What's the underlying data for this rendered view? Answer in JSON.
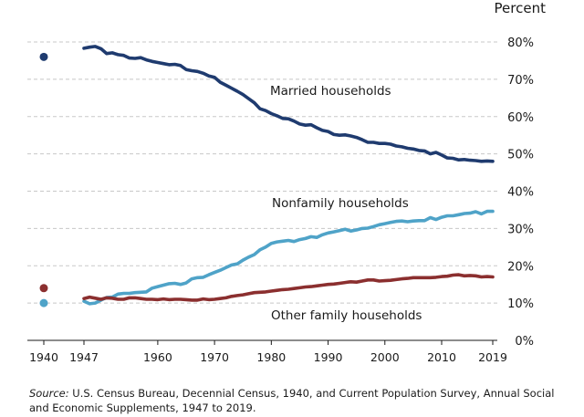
{
  "chart_data": {
    "type": "line",
    "y_unit_label": "Percent",
    "ylim": [
      0,
      80
    ],
    "y_ticks": [
      0,
      10,
      20,
      30,
      40,
      50,
      60,
      70,
      80
    ],
    "y_tick_labels": [
      "0%",
      "10%",
      "20%",
      "30%",
      "40%",
      "50%",
      "60%",
      "70%",
      "80%"
    ],
    "x_ticks": [
      1940,
      1947,
      1960,
      1970,
      1980,
      1990,
      2000,
      2010,
      2019
    ],
    "x_tick_labels": [
      "1940",
      "1947",
      "1960",
      "1970",
      "1980",
      "1990",
      "2000",
      "2010",
      "2019"
    ],
    "gridlines": true,
    "points_1940": [
      {
        "series": "Married households",
        "value": 76
      },
      {
        "series": "Other family households",
        "value": 14
      },
      {
        "series": "Nonfamily households",
        "value": 10
      }
    ],
    "series": [
      {
        "name": "Married households",
        "color": "#1f3b6f",
        "x": [
          1947,
          1948,
          1949,
          1950,
          1951,
          1952,
          1953,
          1954,
          1955,
          1956,
          1957,
          1958,
          1959,
          1960,
          1961,
          1962,
          1963,
          1964,
          1965,
          1966,
          1967,
          1968,
          1969,
          1970,
          1971,
          1972,
          1973,
          1974,
          1975,
          1976,
          1977,
          1978,
          1979,
          1980,
          1981,
          1982,
          1983,
          1984,
          1985,
          1986,
          1987,
          1988,
          1989,
          1990,
          1991,
          1992,
          1993,
          1994,
          1995,
          1996,
          1997,
          1998,
          1999,
          2000,
          2001,
          2002,
          2003,
          2004,
          2005,
          2006,
          2007,
          2008,
          2009,
          2010,
          2011,
          2012,
          2013,
          2014,
          2015,
          2016,
          2017,
          2018,
          2019
        ],
        "values": [
          78.3,
          78.6,
          78.8,
          78.2,
          76.9,
          77.1,
          76.6,
          76.4,
          75.7,
          75.6,
          75.8,
          75.2,
          74.8,
          74.5,
          74.2,
          73.9,
          74.0,
          73.7,
          72.6,
          72.3,
          72.1,
          71.6,
          70.9,
          70.5,
          69.2,
          68.4,
          67.6,
          66.8,
          65.9,
          64.8,
          63.7,
          62.1,
          61.6,
          60.8,
          60.2,
          59.5,
          59.4,
          58.8,
          58.0,
          57.7,
          57.8,
          57.0,
          56.3,
          56.0,
          55.2,
          55.0,
          55.1,
          54.8,
          54.4,
          53.8,
          53.1,
          53.1,
          52.8,
          52.8,
          52.6,
          52.1,
          51.9,
          51.5,
          51.3,
          50.9,
          50.8,
          50.0,
          50.4,
          49.7,
          48.9,
          48.8,
          48.4,
          48.5,
          48.3,
          48.2,
          48.0,
          48.1,
          48.0
        ]
      },
      {
        "name": "Nonfamily households",
        "color": "#4fa3c8",
        "x": [
          1947,
          1948,
          1949,
          1950,
          1951,
          1952,
          1953,
          1954,
          1955,
          1956,
          1957,
          1958,
          1959,
          1960,
          1961,
          1962,
          1963,
          1964,
          1965,
          1966,
          1967,
          1968,
          1969,
          1970,
          1971,
          1972,
          1973,
          1974,
          1975,
          1976,
          1977,
          1978,
          1979,
          1980,
          1981,
          1982,
          1983,
          1984,
          1985,
          1986,
          1987,
          1988,
          1989,
          1990,
          1991,
          1992,
          1993,
          1994,
          1995,
          1996,
          1997,
          1998,
          1999,
          2000,
          2001,
          2002,
          2003,
          2004,
          2005,
          2006,
          2007,
          2008,
          2009,
          2010,
          2011,
          2012,
          2013,
          2014,
          2015,
          2016,
          2017,
          2018,
          2019
        ],
        "values": [
          10.5,
          9.8,
          10.0,
          10.8,
          11.5,
          11.6,
          12.4,
          12.6,
          12.6,
          12.8,
          12.9,
          13.0,
          14.0,
          14.4,
          14.8,
          15.2,
          15.3,
          15.0,
          15.4,
          16.5,
          16.8,
          16.9,
          17.6,
          18.2,
          18.8,
          19.5,
          20.2,
          20.5,
          21.5,
          22.3,
          23.0,
          24.3,
          25.0,
          26.0,
          26.4,
          26.6,
          26.8,
          26.5,
          27.0,
          27.3,
          27.8,
          27.6,
          28.3,
          28.8,
          29.1,
          29.4,
          29.8,
          29.3,
          29.6,
          30.0,
          30.1,
          30.5,
          31.0,
          31.3,
          31.6,
          31.9,
          32.0,
          31.8,
          32.0,
          32.1,
          32.1,
          32.9,
          32.4,
          33.0,
          33.4,
          33.4,
          33.7,
          34.0,
          34.1,
          34.5,
          33.9,
          34.6,
          34.6
        ]
      },
      {
        "name": "Other family households",
        "color": "#8b2f2f",
        "x": [
          1947,
          1948,
          1949,
          1950,
          1951,
          1952,
          1953,
          1954,
          1955,
          1956,
          1957,
          1958,
          1959,
          1960,
          1961,
          1962,
          1963,
          1964,
          1965,
          1966,
          1967,
          1968,
          1969,
          1970,
          1971,
          1972,
          1973,
          1974,
          1975,
          1976,
          1977,
          1978,
          1979,
          1980,
          1981,
          1982,
          1983,
          1984,
          1985,
          1986,
          1987,
          1988,
          1989,
          1990,
          1991,
          1992,
          1993,
          1994,
          1995,
          1996,
          1997,
          1998,
          1999,
          2000,
          2001,
          2002,
          2003,
          2004,
          2005,
          2006,
          2007,
          2008,
          2009,
          2010,
          2011,
          2012,
          2013,
          2014,
          2015,
          2016,
          2017,
          2018,
          2019
        ],
        "values": [
          11.2,
          11.6,
          11.3,
          11.0,
          11.4,
          11.3,
          11.0,
          11.0,
          11.4,
          11.4,
          11.2,
          11.0,
          11.0,
          10.9,
          11.1,
          10.9,
          11.0,
          11.0,
          10.9,
          10.8,
          10.8,
          11.1,
          10.9,
          11.0,
          11.2,
          11.4,
          11.8,
          12.0,
          12.2,
          12.5,
          12.8,
          12.9,
          13.0,
          13.2,
          13.4,
          13.6,
          13.7,
          13.9,
          14.1,
          14.3,
          14.4,
          14.6,
          14.8,
          15.0,
          15.1,
          15.3,
          15.5,
          15.7,
          15.6,
          15.9,
          16.2,
          16.2,
          15.9,
          16.0,
          16.1,
          16.3,
          16.5,
          16.6,
          16.8,
          16.8,
          16.8,
          16.8,
          16.9,
          17.1,
          17.2,
          17.5,
          17.6,
          17.3,
          17.4,
          17.3,
          17.0,
          17.1,
          17.0
        ]
      }
    ],
    "annotations": [
      {
        "text": "Married households",
        "series": "Married households"
      },
      {
        "text": "Nonfamily households",
        "series": "Nonfamily households"
      },
      {
        "text": "Other family households",
        "series": "Other family households"
      }
    ]
  },
  "source": {
    "label": "Source:",
    "text": " U.S. Census Bureau, Decennial Census, 1940, and Current Population Survey, Annual Social and Economic Supplements, 1947 to 2019."
  }
}
